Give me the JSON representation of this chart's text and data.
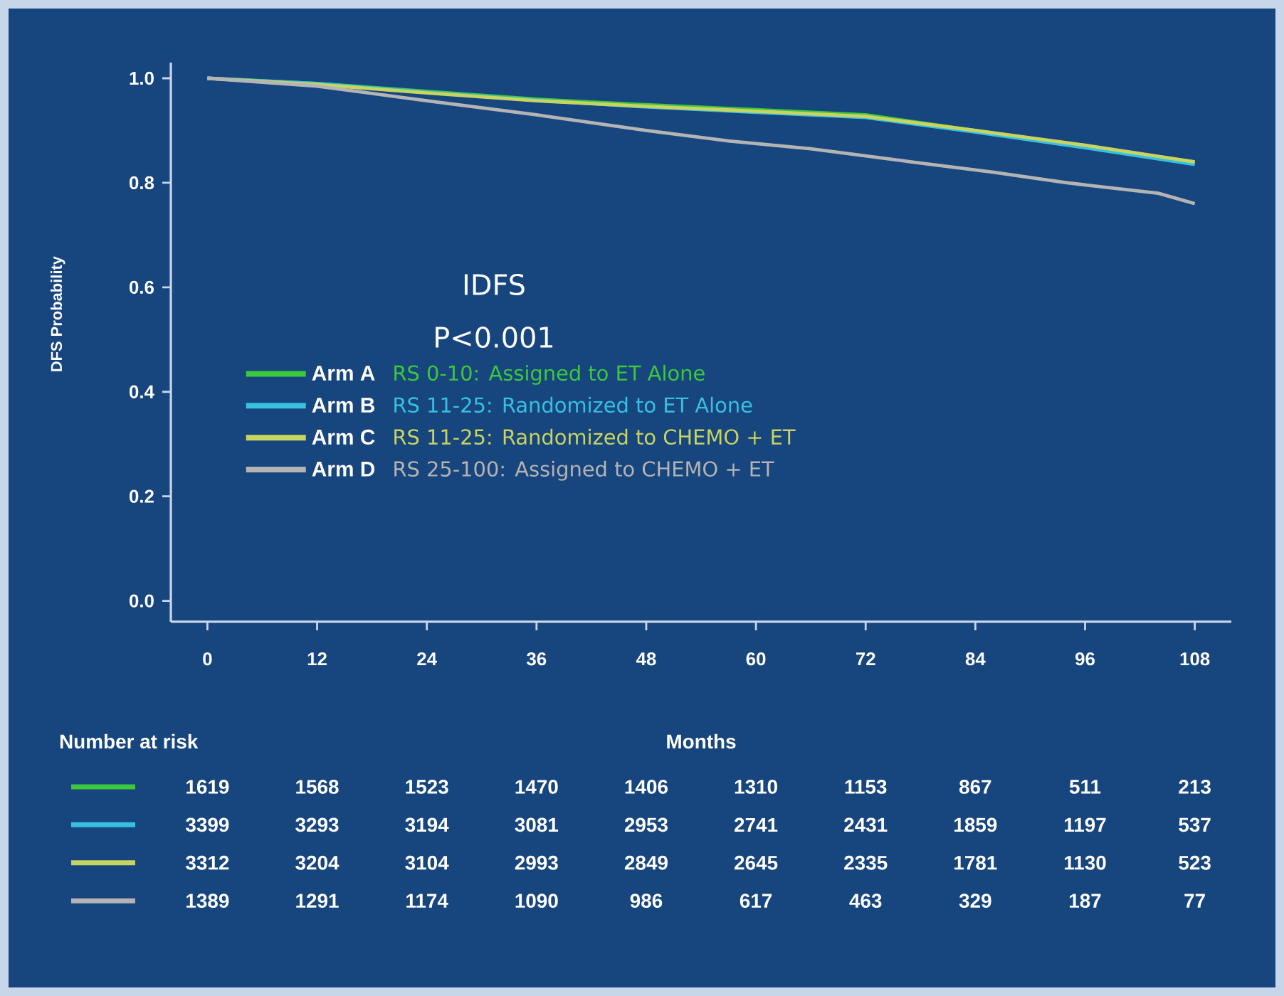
{
  "chart_data": {
    "type": "line",
    "xlabel": "Months",
    "ylabel": "DFS Probability",
    "xlim": [
      -4,
      112
    ],
    "ylim": [
      -0.04,
      1.03
    ],
    "xticks": [
      0,
      12,
      24,
      36,
      48,
      60,
      72,
      84,
      96,
      108
    ],
    "yticks": [
      {
        "value": 0,
        "label": "0.0"
      },
      0.2,
      0.4,
      0.6,
      0.8,
      {
        "value": 1,
        "label": "1.0"
      }
    ],
    "legend": "left",
    "marker": "none",
    "line_style": "solid",
    "series": [
      {
        "name": "Arm A",
        "color": "#3cc83c",
        "x": [
          0,
          12,
          24,
          36,
          47,
          60,
          72,
          84,
          96,
          108
        ],
        "values": [
          1.0,
          0.99,
          0.975,
          0.96,
          0.95,
          0.94,
          0.93,
          0.9,
          0.87,
          0.84
        ]
      },
      {
        "name": "Arm B",
        "color": "#38c0e0",
        "x": [
          0,
          12,
          24,
          36,
          47,
          60,
          72,
          84,
          96,
          108
        ],
        "values": [
          1.0,
          0.99,
          0.973,
          0.958,
          0.946,
          0.935,
          0.925,
          0.897,
          0.867,
          0.835
        ]
      },
      {
        "name": "Arm C",
        "color": "#c8d460",
        "x": [
          0,
          12,
          24,
          36,
          47,
          60,
          72,
          84,
          96,
          108
        ],
        "values": [
          1.0,
          0.988,
          0.972,
          0.957,
          0.947,
          0.937,
          0.927,
          0.9,
          0.872,
          0.84
        ]
      },
      {
        "name": "Arm D",
        "color": "#b4b4b4",
        "x": [
          0,
          12,
          24,
          36,
          48,
          57,
          66,
          77,
          86,
          94,
          104,
          108
        ],
        "values": [
          1.0,
          0.985,
          0.957,
          0.93,
          0.9,
          0.88,
          0.865,
          0.84,
          0.82,
          0.8,
          0.78,
          0.76
        ]
      }
    ],
    "annotations": [
      "IDFS",
      "P<0.001",
      "RS 0-10: Assigned to ET Alone",
      "RS 11-25: Randomized to ET Alone",
      "RS 11-25: Randomized to CHEMO + ET",
      "RS 25-100: Assigned to CHEMO + ET",
      "Number at risk",
      "1619",
      "1568",
      "1523",
      "1470",
      "1406",
      "1310",
      "1153",
      "867",
      "511",
      "213",
      "3399",
      "3293",
      "3194",
      "3081",
      "2953",
      "2741",
      "2431",
      "1859",
      "1197",
      "537",
      "3312",
      "3204",
      "3104",
      "2993",
      "2849",
      "2645",
      "2335",
      "1781",
      "1130",
      "523",
      "1389",
      "1291",
      "1174",
      "1090",
      "986",
      "617",
      "463",
      "329",
      "187",
      "77"
    ]
  }
}
